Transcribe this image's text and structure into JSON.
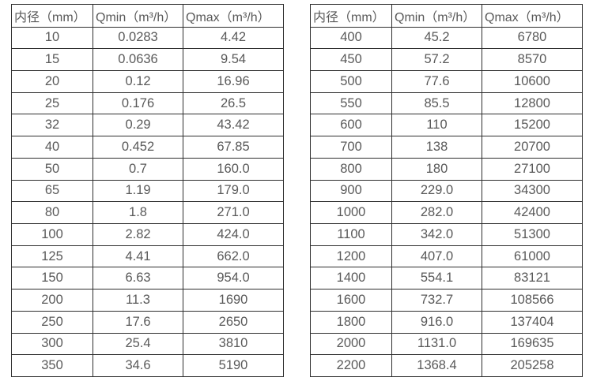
{
  "colors": {
    "background": "#ffffff",
    "border": "#2e2e2e",
    "text": "#595959"
  },
  "chart_data": [
    {
      "type": "table",
      "headers": [
        "内径（mm）",
        "Qmin（m³/h）",
        "Qmax（m³/h）"
      ],
      "rows": [
        [
          "10",
          "0.0283",
          "4.42"
        ],
        [
          "15",
          "0.0636",
          "9.54"
        ],
        [
          "20",
          "0.12",
          "16.96"
        ],
        [
          "25",
          "0.176",
          "26.5"
        ],
        [
          "32",
          "0.29",
          "43.42"
        ],
        [
          "40",
          "0.452",
          "67.85"
        ],
        [
          "50",
          "0.7",
          "160.0"
        ],
        [
          "65",
          "1.19",
          "179.0"
        ],
        [
          "80",
          "1.8",
          "271.0"
        ],
        [
          "100",
          "2.82",
          "424.0"
        ],
        [
          "125",
          "4.41",
          "662.0"
        ],
        [
          "150",
          "6.63",
          "954.0"
        ],
        [
          "200",
          "11.3",
          "1690"
        ],
        [
          "250",
          "17.6",
          "2650"
        ],
        [
          "300",
          "25.4",
          "3810"
        ],
        [
          "350",
          "34.6",
          "5190"
        ]
      ]
    },
    {
      "type": "table",
      "headers": [
        "内径（mm）",
        "Qmin（m³/h）",
        "Qmax（m³/h）"
      ],
      "rows": [
        [
          "400",
          "45.2",
          "6780"
        ],
        [
          "450",
          "57.2",
          "8570"
        ],
        [
          "500",
          "77.6",
          "10600"
        ],
        [
          "550",
          "85.5",
          "12800"
        ],
        [
          "600",
          "110",
          "15200"
        ],
        [
          "700",
          "138",
          "20700"
        ],
        [
          "800",
          "180",
          "27100"
        ],
        [
          "900",
          "229.0",
          "34300"
        ],
        [
          "1000",
          "282.0",
          "42400"
        ],
        [
          "1100",
          "342.0",
          "51300"
        ],
        [
          "1200",
          "407.0",
          "61000"
        ],
        [
          "1400",
          "554.1",
          "83121"
        ],
        [
          "1600",
          "732.7",
          "108566"
        ],
        [
          "1800",
          "916.0",
          "137404"
        ],
        [
          "2000",
          "1131.0",
          "169635"
        ],
        [
          "2200",
          "1368.4",
          "205258"
        ]
      ]
    }
  ]
}
